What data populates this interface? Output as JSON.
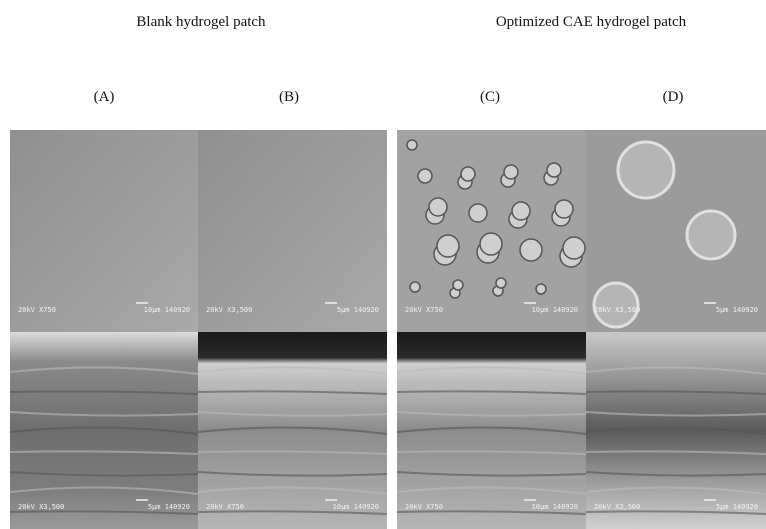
{
  "headers": [
    "Blank hydrogel patch",
    "Optimized CAE hydrogel patch"
  ],
  "panels": [
    {
      "label": "(A)",
      "images": [
        {
          "magnification": "20kV X750",
          "scale": "10µm 140920"
        },
        {
          "magnification": "20kV X3,500",
          "scale": "5µm 140920"
        }
      ]
    },
    {
      "label": "(B)",
      "images": [
        {
          "magnification": "20kV X3,500",
          "scale": "5µm 140920"
        },
        {
          "magnification": "20kV X750",
          "scale": "10µm 140920"
        }
      ]
    },
    {
      "label": "(C)",
      "images": [
        {
          "magnification": "20kV X750",
          "scale": "10µm 140920"
        },
        {
          "magnification": "20kV X750",
          "scale": "10µm 140920"
        }
      ]
    },
    {
      "label": "(D)",
      "images": [
        {
          "magnification": "20kV X3,500",
          "scale": "5µm 140920"
        },
        {
          "magnification": "20kV X3,500",
          "scale": "5µm 140920"
        }
      ]
    }
  ]
}
